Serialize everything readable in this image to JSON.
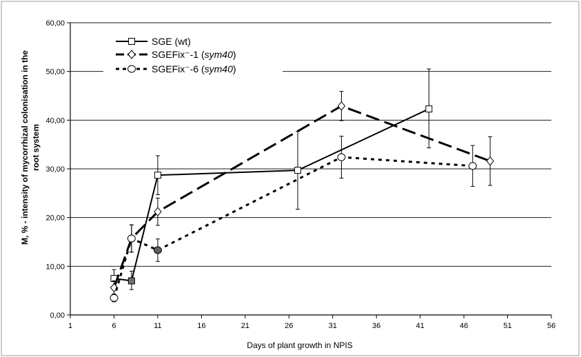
{
  "chart_data": {
    "type": "line",
    "title": "",
    "xlabel": "Days of plant growth in NPIS",
    "ylabel": "M, % - intensity of mycorrhizal colonisation in the root  system",
    "xlim": [
      1,
      56
    ],
    "ylim": [
      0,
      60
    ],
    "x_ticks": [
      "1",
      "6",
      "11",
      "16",
      "21",
      "26",
      "31",
      "36",
      "41",
      "46",
      "51",
      "56"
    ],
    "y_ticks": [
      "0,00",
      "10,00",
      "20,00",
      "30,00",
      "40,00",
      "50,00",
      "60,00"
    ],
    "grid": "horizontal",
    "legend_position": "top-left",
    "series": [
      {
        "name": "SGE (wt)",
        "style": "solid",
        "marker": "square",
        "x": [
          6,
          8,
          11,
          27,
          42
        ],
        "y": [
          7.5,
          7.0,
          28.7,
          29.7,
          42.3
        ],
        "err_low": [
          1.5,
          1.8,
          4.0,
          8.0,
          8.0
        ],
        "err_high": [
          1.8,
          2.0,
          4.0,
          8.0,
          8.2
        ]
      },
      {
        "name": "SGEFix⁻-1 (sym40)",
        "style": "long-dash",
        "marker": "diamond",
        "x": [
          6,
          8,
          11,
          32,
          49
        ],
        "y": [
          5.6,
          15.7,
          21.2,
          42.9,
          31.6
        ],
        "err_low": [
          1.4,
          2.8,
          2.8,
          3.0,
          5.0
        ],
        "err_high": [
          1.4,
          2.8,
          2.8,
          3.0,
          5.0
        ]
      },
      {
        "name": "SGEFix⁻-6 (sym40)",
        "style": "dotted",
        "marker": "circle",
        "x": [
          6,
          8,
          11,
          32,
          47
        ],
        "y": [
          3.5,
          15.7,
          13.3,
          32.4,
          30.6
        ],
        "err_low": [
          0.8,
          2.8,
          2.3,
          4.3,
          4.2
        ],
        "err_high": [
          0.8,
          2.8,
          2.3,
          4.3,
          4.2
        ]
      }
    ],
    "legend": [
      {
        "base": "SGE (wt)",
        "italic": "",
        "suffix": ""
      },
      {
        "base": "SGEFix⁻-1 (",
        "italic": "sym40",
        "suffix": ")"
      },
      {
        "base": "SGEFix⁻-6 (",
        "italic": "sym40",
        "suffix": ")"
      }
    ]
  }
}
